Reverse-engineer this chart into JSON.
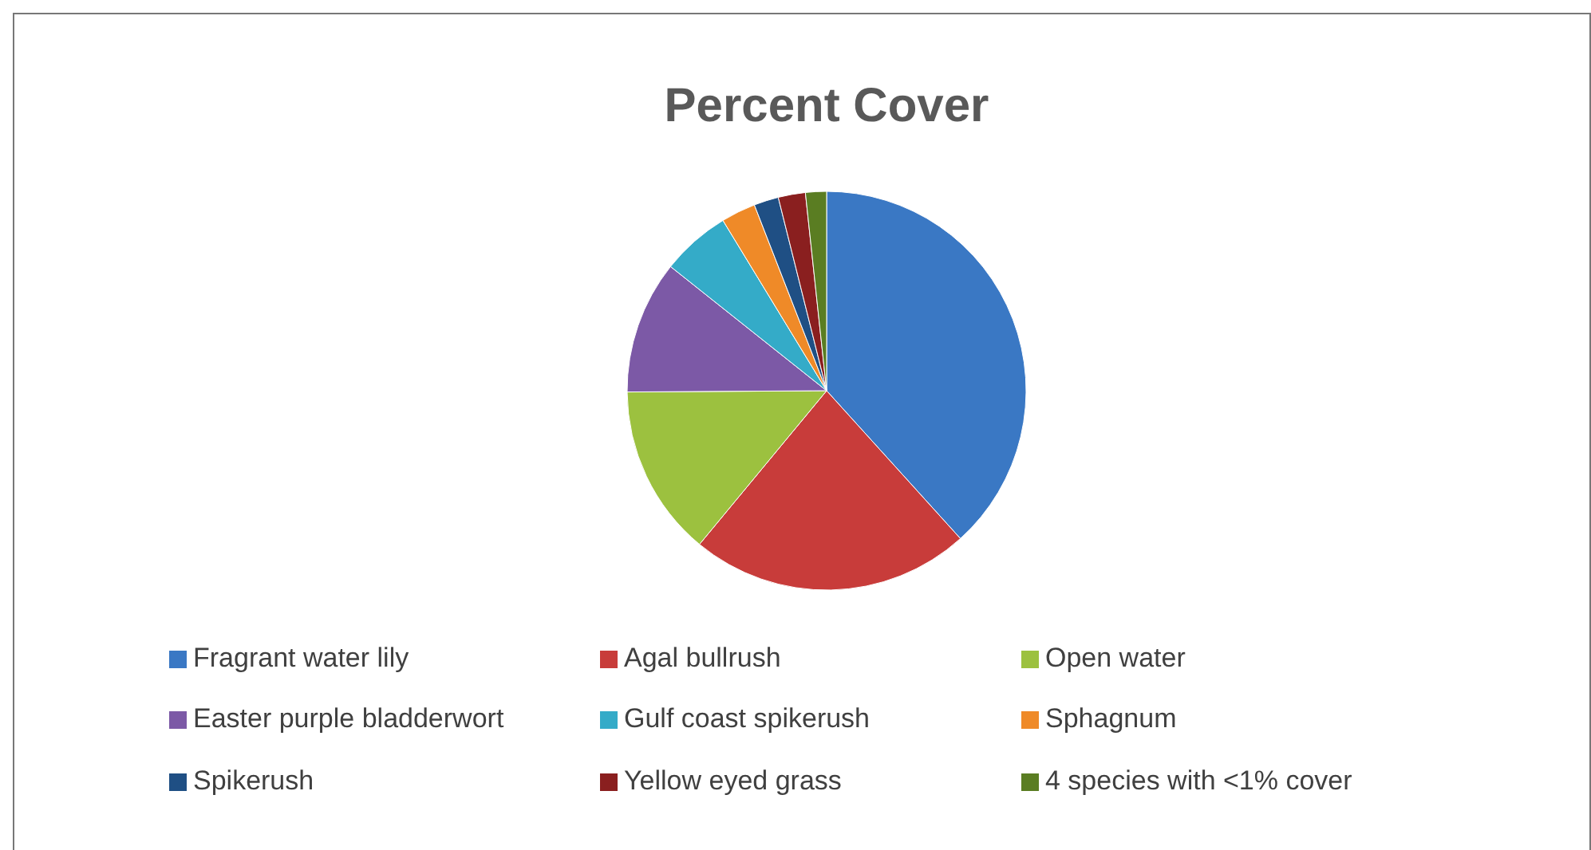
{
  "chart_data": {
    "type": "pie",
    "title": "Percent Cover",
    "categories": [
      "Fragrant water lily",
      "Agal bullrush",
      "Open water",
      "Easter purple bladderwort",
      "Gulf coast spikerush",
      "Sphagnum",
      "Spikerush",
      "Yellow eyed grass",
      "4 species with <1% cover"
    ],
    "values": [
      38.3,
      22.7,
      13.9,
      10.8,
      5.6,
      2.8,
      2.0,
      2.2,
      1.7
    ],
    "colors": [
      "#3a78c4",
      "#c83c3a",
      "#9cc13f",
      "#7c59a6",
      "#34abc8",
      "#ef8a28",
      "#1f4f84",
      "#8a1f1f",
      "#5a7d22"
    ],
    "legend": "bottom"
  }
}
